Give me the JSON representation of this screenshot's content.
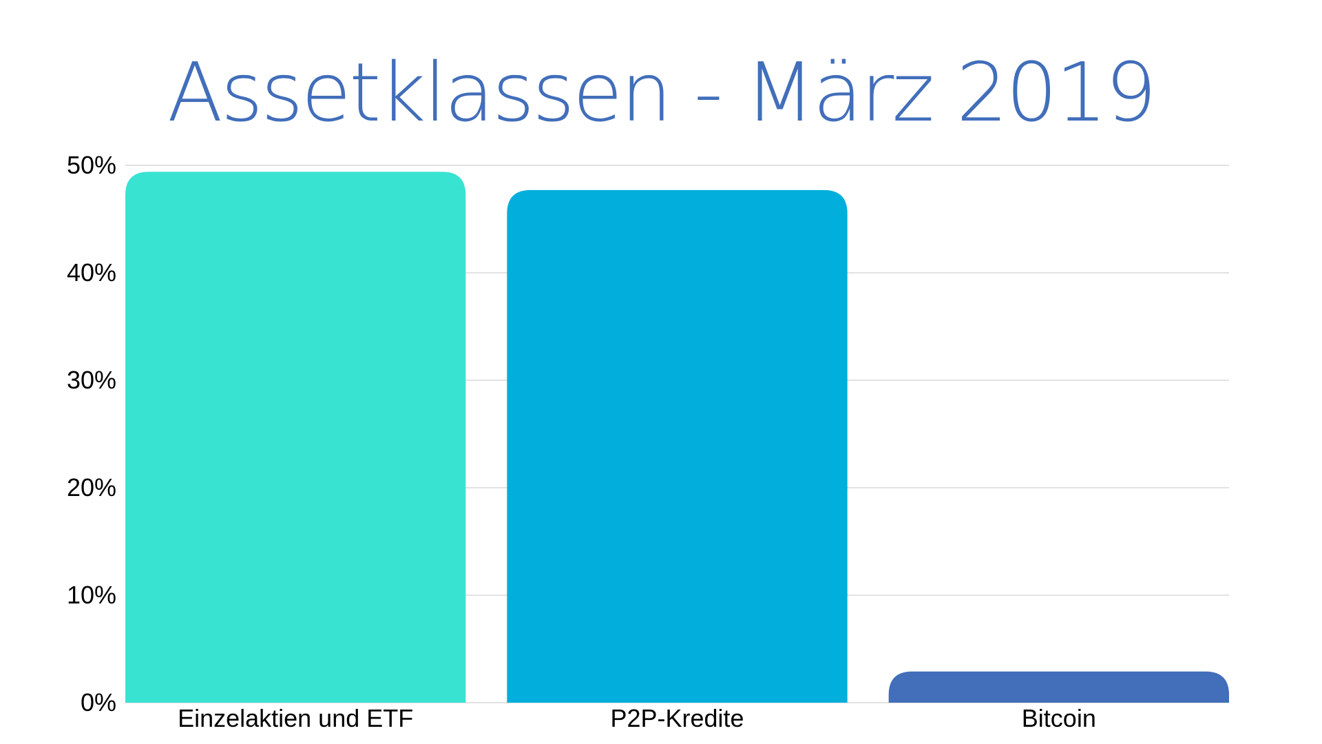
{
  "chart_data": {
    "type": "bar",
    "title": "Assetklassen - März 2019",
    "categories": [
      "Einzelaktien und ETF",
      "P2P-Kredite",
      "Bitcoin"
    ],
    "values": [
      49.4,
      47.7,
      2.9
    ],
    "value_unit": "%",
    "ylim": [
      0,
      50
    ],
    "yticks": [
      0,
      10,
      20,
      30,
      40,
      50
    ],
    "ytick_labels": [
      "0%",
      "10%",
      "20%",
      "30%",
      "40%",
      "50%"
    ],
    "xlabel": "",
    "ylabel": "",
    "grid": true,
    "legend": "none",
    "colors": [
      "#38e3d2",
      "#02aedc",
      "#426eba"
    ],
    "title_color": "#426eba",
    "grid_color": "#d9d9d9"
  }
}
